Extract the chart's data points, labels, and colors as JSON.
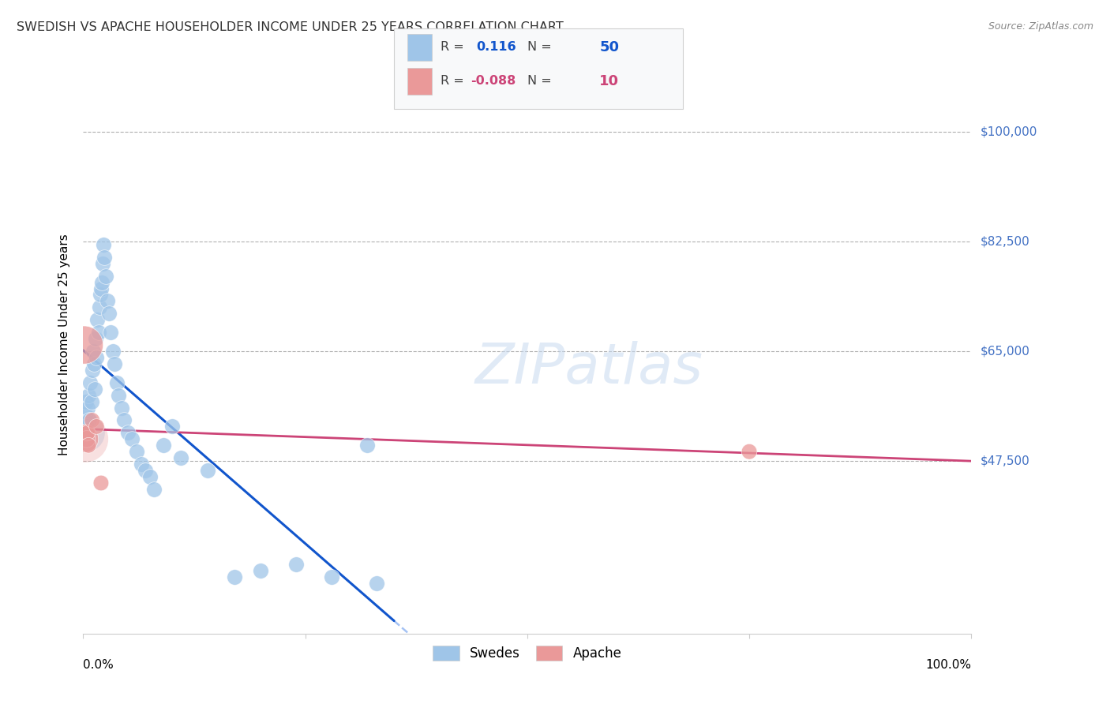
{
  "title": "SWEDISH VS APACHE HOUSEHOLDER INCOME UNDER 25 YEARS CORRELATION CHART",
  "source": "Source: ZipAtlas.com",
  "ylabel": "Householder Income Under 25 years",
  "legend_swedes_label": "Swedes",
  "legend_apache_label": "Apache",
  "y_ticks": [
    47500,
    65000,
    82500,
    100000
  ],
  "y_tick_labels": [
    "$47,500",
    "$65,000",
    "$82,500",
    "$100,000"
  ],
  "y_labels_color": "#4472c4",
  "blue_color": "#9fc5e8",
  "blue_line_color": "#1155cc",
  "blue_line_color2": "#a4c2f4",
  "pink_color": "#ea9999",
  "pink_line_color": "#cc4477",
  "background_color": "#ffffff",
  "grid_color": "#b0b0b0",
  "xlim": [
    0,
    100
  ],
  "ylim": [
    20000,
    112000
  ],
  "swedes_x": [
    0.2,
    0.3,
    0.4,
    0.5,
    0.6,
    0.7,
    0.8,
    0.9,
    1.0,
    1.1,
    1.2,
    1.3,
    1.4,
    1.5,
    1.6,
    1.7,
    1.8,
    1.9,
    2.0,
    2.1,
    2.2,
    2.3,
    2.4,
    2.5,
    2.7,
    2.9,
    3.1,
    3.3,
    3.5,
    3.8,
    4.0,
    4.3,
    4.6,
    5.0,
    5.5,
    6.0,
    6.5,
    7.0,
    7.5,
    8.0,
    9.0,
    10.0,
    11.0,
    14.0,
    17.0,
    20.0,
    24.0,
    28.0,
    33.0,
    32.0
  ],
  "swedes_y": [
    55000,
    57000,
    53000,
    56000,
    58000,
    54000,
    60000,
    57000,
    62000,
    65000,
    63000,
    59000,
    67000,
    64000,
    70000,
    68000,
    72000,
    74000,
    75000,
    76000,
    79000,
    82000,
    80000,
    77000,
    73000,
    71000,
    68000,
    65000,
    63000,
    60000,
    58000,
    56000,
    54000,
    52000,
    51000,
    49000,
    47000,
    46000,
    45000,
    43000,
    50000,
    53000,
    48000,
    46000,
    29000,
    30000,
    31000,
    29000,
    28000,
    50000
  ],
  "apache_x": [
    0.1,
    0.2,
    0.3,
    0.4,
    0.5,
    0.6,
    1.0,
    1.5,
    2.0,
    75.0
  ],
  "apache_y": [
    66000,
    51000,
    52000,
    51000,
    52000,
    50000,
    54000,
    53000,
    44000,
    49000
  ],
  "swedes_size": 200,
  "apache_size": 200,
  "apache_large_size": 600
}
